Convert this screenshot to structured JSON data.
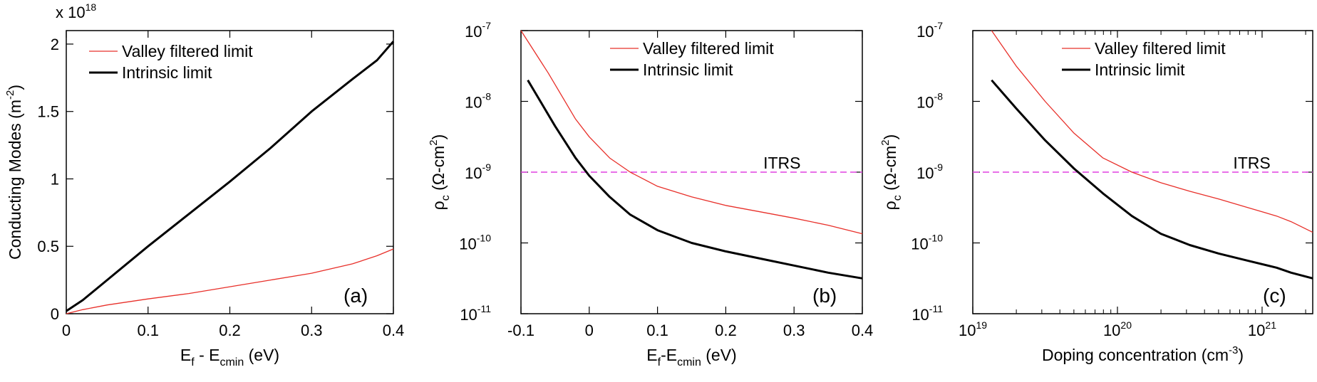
{
  "chart_data": [
    {
      "type": "line",
      "panel_label": "(a)",
      "xlabel": {
        "main": "E",
        "sub1": "f",
        "mid": " - E",
        "sub2": "cmin",
        "tail": " (eV)"
      },
      "ylabel": {
        "main": "Conducting Modes (m",
        "sup": "-2",
        "tail": ")"
      },
      "exponent_label": {
        "base": "x 10",
        "sup": "18"
      },
      "xlim": [
        0,
        0.4
      ],
      "ylim": [
        0,
        2.1
      ],
      "xscale": "linear",
      "yscale": "linear",
      "xticks": [
        {
          "v": 0,
          "label": "0"
        },
        {
          "v": 0.1,
          "label": "0.1"
        },
        {
          "v": 0.2,
          "label": "0.2"
        },
        {
          "v": 0.3,
          "label": "0.3"
        },
        {
          "v": 0.4,
          "label": "0.4"
        }
      ],
      "yticks": [
        {
          "v": 0,
          "label": "0"
        },
        {
          "v": 0.5,
          "label": "0.5"
        },
        {
          "v": 1,
          "label": "1"
        },
        {
          "v": 1.5,
          "label": "1.5"
        },
        {
          "v": 2,
          "label": "2"
        }
      ],
      "legend_position": "top-left",
      "series": [
        {
          "name": "Valley filtered limit",
          "color": "#e8302a",
          "width": 1.3,
          "x": [
            0,
            0.02,
            0.05,
            0.1,
            0.15,
            0.2,
            0.25,
            0.3,
            0.35,
            0.38,
            0.4
          ],
          "y": [
            0,
            0.03,
            0.065,
            0.11,
            0.15,
            0.2,
            0.25,
            0.3,
            0.37,
            0.43,
            0.48
          ]
        },
        {
          "name": "Intrinsic limit",
          "color": "#000000",
          "width": 3,
          "x": [
            0,
            0.02,
            0.05,
            0.1,
            0.15,
            0.2,
            0.25,
            0.3,
            0.35,
            0.38,
            0.4
          ],
          "y": [
            0.02,
            0.1,
            0.25,
            0.5,
            0.74,
            0.98,
            1.23,
            1.5,
            1.74,
            1.88,
            2.02
          ]
        }
      ]
    },
    {
      "type": "line",
      "panel_label": "(b)",
      "xlabel": {
        "main": "E",
        "sub1": "f",
        "mid": "-E",
        "sub2": "cmin",
        "tail": " (eV)"
      },
      "ylabel": {
        "main": "ρ",
        "sub": "c",
        "mid": " (Ω-cm",
        "sup": "2",
        "tail": ")"
      },
      "xlim": [
        -0.1,
        0.4
      ],
      "ylim_exp": [
        -11,
        -7
      ],
      "xscale": "linear",
      "yscale": "log",
      "xticks": [
        {
          "v": -0.1,
          "label": "-0.1"
        },
        {
          "v": 0,
          "label": "0"
        },
        {
          "v": 0.1,
          "label": "0.1"
        },
        {
          "v": 0.2,
          "label": "0.2"
        },
        {
          "v": 0.3,
          "label": "0.3"
        },
        {
          "v": 0.4,
          "label": "0.4"
        }
      ],
      "yticks": [
        {
          "e": -7,
          "label": "10",
          "sup": "-7"
        },
        {
          "e": -8,
          "label": "10",
          "sup": "-8"
        },
        {
          "e": -9,
          "label": "10",
          "sup": "-9"
        },
        {
          "e": -10,
          "label": "10",
          "sup": "-10"
        },
        {
          "e": -11,
          "label": "10",
          "sup": "-11"
        }
      ],
      "reference_line": {
        "label": "ITRS",
        "value_exp": -9,
        "color": "#e040e0",
        "x_label_at": 0.255
      },
      "legend_position": "top-right",
      "series": [
        {
          "name": "Valley filtered limit",
          "color": "#e8302a",
          "width": 1.3,
          "x": [
            -0.1,
            -0.06,
            -0.02,
            0.0,
            0.03,
            0.06,
            0.1,
            0.15,
            0.2,
            0.25,
            0.3,
            0.35,
            0.4
          ],
          "y_exp": [
            -7.0,
            -7.6,
            -8.25,
            -8.5,
            -8.8,
            -9.0,
            -9.2,
            -9.35,
            -9.47,
            -9.56,
            -9.65,
            -9.75,
            -9.87
          ]
        },
        {
          "name": "Intrinsic limit",
          "color": "#000000",
          "width": 3,
          "x": [
            -0.09,
            -0.05,
            -0.02,
            0.0,
            0.03,
            0.06,
            0.1,
            0.15,
            0.2,
            0.25,
            0.3,
            0.35,
            0.4
          ],
          "y_exp": [
            -7.7,
            -8.35,
            -8.8,
            -9.05,
            -9.35,
            -9.6,
            -9.82,
            -10.0,
            -10.12,
            -10.22,
            -10.32,
            -10.42,
            -10.5
          ]
        }
      ]
    },
    {
      "type": "line",
      "panel_label": "(c)",
      "xlabel": {
        "main": "Doping concentration (cm",
        "sup": "-3",
        "tail": ")"
      },
      "ylabel": {
        "main": "ρ",
        "sub": "c",
        "mid": " (Ω-cm",
        "sup": "2",
        "tail": ")"
      },
      "xlim_exp": [
        19,
        21.35
      ],
      "ylim_exp": [
        -11,
        -7
      ],
      "xscale": "log",
      "yscale": "log",
      "xticks": [
        {
          "e": 19,
          "label": "10",
          "sup": "19"
        },
        {
          "e": 20,
          "label": "10",
          "sup": "20"
        },
        {
          "e": 21,
          "label": "10",
          "sup": "21"
        }
      ],
      "yticks": [
        {
          "e": -7,
          "label": "10",
          "sup": "-7"
        },
        {
          "e": -8,
          "label": "10",
          "sup": "-8"
        },
        {
          "e": -9,
          "label": "10",
          "sup": "-9"
        },
        {
          "e": -10,
          "label": "10",
          "sup": "-10"
        },
        {
          "e": -11,
          "label": "10",
          "sup": "-11"
        }
      ],
      "reference_line": {
        "label": "ITRS",
        "value_exp": -9,
        "color": "#e040e0",
        "x_label_at_exp": 20.8
      },
      "legend_position": "top-right",
      "series": [
        {
          "name": "Valley filtered limit",
          "color": "#e8302a",
          "width": 1.3,
          "x_exp": [
            19.13,
            19.3,
            19.5,
            19.7,
            19.9,
            20.1,
            20.3,
            20.5,
            20.7,
            20.9,
            21.1,
            21.2,
            21.35
          ],
          "y_exp": [
            -7.0,
            -7.5,
            -8.0,
            -8.45,
            -8.8,
            -9.0,
            -9.15,
            -9.27,
            -9.38,
            -9.5,
            -9.62,
            -9.7,
            -9.85
          ]
        },
        {
          "name": "Intrinsic limit",
          "color": "#000000",
          "width": 3,
          "x_exp": [
            19.13,
            19.3,
            19.5,
            19.7,
            19.9,
            20.1,
            20.3,
            20.5,
            20.7,
            20.9,
            21.1,
            21.2,
            21.35
          ],
          "y_exp": [
            -7.7,
            -8.1,
            -8.55,
            -8.95,
            -9.3,
            -9.62,
            -9.87,
            -10.03,
            -10.15,
            -10.25,
            -10.35,
            -10.42,
            -10.5
          ]
        }
      ]
    }
  ]
}
